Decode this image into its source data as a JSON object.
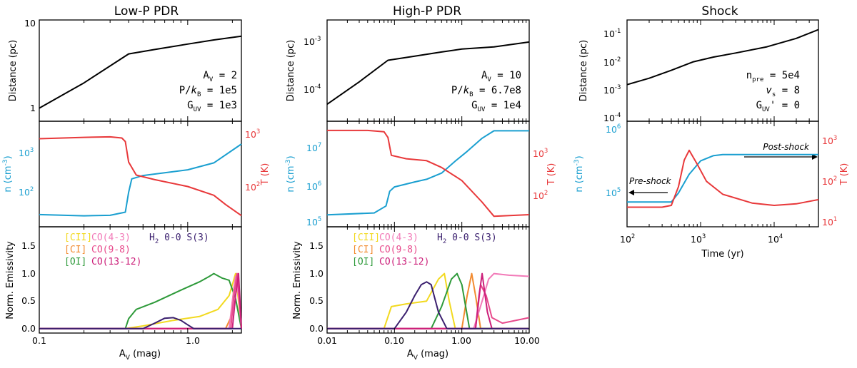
{
  "colors": {
    "density": "#1a9fd0",
    "temperature": "#e8383a",
    "distance": "#000000",
    "CII": "#f2d91f",
    "CI": "#f28b30",
    "OI": "#2e9a3a",
    "CO43": "#f27ab8",
    "CO98": "#e84a8c",
    "CO1312": "#cc1f7a",
    "H2": "#3a1f6e"
  },
  "panels": {
    "lowp": {
      "title": "Low-P PDR",
      "xlabel": "AV (mag)",
      "xlabel_main": "A",
      "xlabel_sub": "V",
      "xlabel_tail": " (mag)",
      "x_ticks": [
        "0.1",
        "1.0"
      ],
      "dist_ylabel": "Distance (pc)",
      "dist_ticks": [
        "1",
        "10"
      ],
      "params": {
        "av": "AV = 2",
        "pk": "P/kB = 1e5",
        "guv": "GUV = 1e3",
        "av_val": "2",
        "pk_val": "1e5",
        "guv_val": "1e3"
      },
      "n_ylabel": "n (cm-3)",
      "T_ylabel": "T (K)",
      "n_ticks": [
        "10",
        "10",
        "10"
      ],
      "n_exps": [
        "2",
        "3"
      ],
      "T_exps": [
        "2",
        "3"
      ],
      "em_ylabel": "Norm. Emissivity",
      "em_ticks": [
        "0.0",
        "0.5",
        "1.0",
        "1.5"
      ],
      "legend": [
        "[CII]",
        "[CI]",
        "[OI]",
        "CO(4-3)",
        "CO(9-8)",
        "CO(13-12)",
        "H2 0-0 S(3)"
      ]
    },
    "highp": {
      "title": "High-P PDR",
      "xlabel": "AV (mag)",
      "x_ticks": [
        "0.01",
        "0.10",
        "1.00",
        "10.00"
      ],
      "dist_ylabel": "Distance (pc)",
      "dist_exps": [
        "-4",
        "-3"
      ],
      "params": {
        "av_val": "10",
        "pk_val": "6.7e8",
        "guv_val": "1e4"
      },
      "n_ylabel": "n (cm-3)",
      "T_ylabel": "T (K)",
      "n_exps": [
        "5",
        "6",
        "7"
      ],
      "T_exps": [
        "2",
        "3"
      ],
      "em_ylabel": "Norm. Emissivity",
      "em_ticks": [
        "0.0",
        "0.5",
        "1.0",
        "1.5"
      ],
      "legend": [
        "[CII]",
        "[CI]",
        "[OI]",
        "CO(4-3)",
        "CO(9-8)",
        "CO(13-12)",
        "H2 0-0 S(3)"
      ]
    },
    "shock": {
      "title": "Shock",
      "xlabel": "Time (yr)",
      "x_exps": [
        "2",
        "3",
        "4"
      ],
      "dist_ylabel": "Distance (pc)",
      "dist_exps": [
        "-4",
        "-3",
        "-2",
        "-1"
      ],
      "params": {
        "npre_val": "5e4",
        "vs_val": "8",
        "guv_val": "0"
      },
      "n_ylabel": "n (cm-3)",
      "T_ylabel": "T (K)",
      "n_exps": [
        "5",
        "6"
      ],
      "T_exps": [
        "1",
        "2",
        "3"
      ],
      "pre_label": "Pre-shock",
      "post_label": "Post-shock"
    }
  },
  "chart_data": [
    {
      "type": "line",
      "title": "Low-P PDR",
      "xlabel": "AV (mag)",
      "xscale": "log",
      "xlim": [
        0.1,
        2.3
      ],
      "subplots": [
        {
          "ylabel": "Distance (pc)",
          "yscale": "log",
          "ylim": [
            0.75,
            10
          ],
          "series": [
            {
              "name": "Distance",
              "x": [
                0.1,
                0.2,
                0.4,
                0.6,
                1.0,
                1.5,
                2.3
              ],
              "y": [
                1.05,
                2.0,
                4.2,
                4.7,
                5.4,
                6.0,
                6.6
              ]
            }
          ]
        },
        {
          "ylabel": "n (cm-3)",
          "yscale": "log",
          "ylim": [
            75,
            3000
          ],
          "series": [
            {
              "name": "n",
              "x": [
                0.1,
                0.2,
                0.3,
                0.38,
                0.4,
                0.42,
                0.5,
                1.0,
                1.5,
                2.3
              ],
              "y": [
                115,
                110,
                112,
                125,
                250,
                400,
                450,
                550,
                700,
                1350
              ]
            }
          ],
          "y2label": "T (K)",
          "y2scale": "log",
          "y2lim": [
            60,
            1600
          ],
          "series2": [
            {
              "name": "T",
              "x": [
                0.1,
                0.2,
                0.3,
                0.36,
                0.38,
                0.4,
                0.45,
                0.6,
                1.0,
                1.5,
                1.8,
                2.3
              ],
              "y": [
                930,
                970,
                985,
                950,
                850,
                450,
                300,
                260,
                210,
                160,
                120,
                85
              ]
            }
          ]
        },
        {
          "ylabel": "Norm. Emissivity",
          "ylim": [
            -0.08,
            1.85
          ],
          "series": [
            {
              "name": "[CII]",
              "x": [
                0.1,
                0.38,
                0.5,
                0.8,
                1.2,
                1.6,
                1.9,
                2.0,
                2.1,
                2.2,
                2.3
              ],
              "y": [
                0,
                0,
                0.05,
                0.15,
                0.22,
                0.35,
                0.6,
                0.8,
                1.0,
                0.5,
                0
              ]
            },
            {
              "name": "[CI]",
              "x": [
                0.1,
                1.8,
                1.95,
                2.05,
                2.15,
                2.25,
                2.3
              ],
              "y": [
                0,
                0,
                0.2,
                0.75,
                1.0,
                0.4,
                0
              ]
            },
            {
              "name": "[OI]",
              "x": [
                0.1,
                0.38,
                0.4,
                0.45,
                0.6,
                0.9,
                1.2,
                1.4,
                1.5,
                1.55,
                1.7,
                1.9,
                2.1,
                2.3
              ],
              "y": [
                0,
                0,
                0.18,
                0.35,
                0.48,
                0.7,
                0.85,
                0.95,
                1.0,
                0.98,
                0.92,
                0.88,
                0.55,
                0
              ]
            },
            {
              "name": "CO(4-3)",
              "x": [
                0.1,
                1.9,
                2.0,
                2.1,
                2.2,
                2.3
              ],
              "y": [
                0,
                0,
                0.5,
                0.95,
                0.6,
                0
              ]
            },
            {
              "name": "CO(9-8)",
              "x": [
                0.1,
                1.95,
                2.05,
                2.15,
                2.25,
                2.3
              ],
              "y": [
                0,
                0,
                0.6,
                1.0,
                0.4,
                0
              ]
            },
            {
              "name": "CO(13-12)",
              "x": [
                0.1,
                2.0,
                2.1,
                2.2,
                2.25,
                2.3
              ],
              "y": [
                0,
                0,
                0.6,
                1.0,
                0.5,
                0
              ]
            },
            {
              "name": "H2 0-0 S(3)",
              "x": [
                0.1,
                0.5,
                0.6,
                0.7,
                0.8,
                0.9,
                1.0,
                1.1,
                2.3
              ],
              "y": [
                0,
                0,
                0.1,
                0.19,
                0.2,
                0.15,
                0.07,
                0,
                0
              ]
            }
          ]
        }
      ],
      "annotations": [
        "AV = 2",
        "P/kB = 1e5",
        "GUV = 1e3"
      ]
    },
    {
      "type": "line",
      "title": "High-P PDR",
      "xlabel": "AV (mag)",
      "xscale": "log",
      "xlim": [
        0.01,
        10
      ],
      "subplots": [
        {
          "ylabel": "Distance (pc)",
          "yscale": "log",
          "ylim": [
            3e-05,
            0.003
          ],
          "series": [
            {
              "name": "Distance",
              "x": [
                0.01,
                0.03,
                0.08,
                0.2,
                0.5,
                1.0,
                3.0,
                10
              ],
              "y": [
                6.5e-05,
                0.00018,
                0.00048,
                0.00058,
                0.0007,
                0.0008,
                0.00088,
                0.0011
              ]
            }
          ]
        },
        {
          "ylabel": "n (cm-3)",
          "yscale": "log",
          "ylim": [
            90000,
            40000000
          ],
          "series": [
            {
              "name": "n",
              "x": [
                0.01,
                0.05,
                0.075,
                0.085,
                0.1,
                0.2,
                0.3,
                0.5,
                0.8,
                1.2,
                2.0,
                3.0,
                10
              ],
              "y": [
                180000,
                200000,
                300000,
                700000,
                900000,
                1200000,
                1400000,
                2000000,
                4000000,
                7000000,
                15000000,
                23000000,
                23000000
              ]
            }
          ],
          "y2label": "T (K)",
          "y2scale": "log",
          "y2lim": [
            50,
            3000
          ],
          "series2": [
            {
              "name": "T",
              "x": [
                0.01,
                0.04,
                0.07,
                0.08,
                0.09,
                0.15,
                0.3,
                0.5,
                1.0,
                2.0,
                3.0,
                10
              ],
              "y": [
                2100,
                2100,
                2000,
                1600,
                800,
                700,
                650,
                500,
                300,
                130,
                75,
                80
              ]
            }
          ]
        },
        {
          "ylabel": "Norm. Emissivity",
          "ylim": [
            -0.08,
            1.85
          ],
          "series": [
            {
              "name": "[CII]",
              "x": [
                0.01,
                0.07,
                0.09,
                0.15,
                0.3,
                0.45,
                0.55,
                0.65,
                0.8,
                10
              ],
              "y": [
                0,
                0,
                0.4,
                0.45,
                0.5,
                0.9,
                1.0,
                0.5,
                0,
                0
              ]
            },
            {
              "name": "[CI]",
              "x": [
                0.01,
                1.0,
                1.2,
                1.4,
                1.6,
                1.9,
                10
              ],
              "y": [
                0,
                0,
                0.6,
                1.0,
                0.6,
                0,
                0
              ]
            },
            {
              "name": "[OI]",
              "x": [
                0.01,
                0.35,
                0.5,
                0.7,
                0.85,
                1.0,
                1.3,
                10
              ],
              "y": [
                0,
                0,
                0.4,
                0.9,
                1.0,
                0.8,
                0,
                0
              ]
            },
            {
              "name": "CO(4-3)",
              "x": [
                0.01,
                1.5,
                2.0,
                2.5,
                3.0,
                5.0,
                10
              ],
              "y": [
                0,
                0,
                0.5,
                0.9,
                1.0,
                0.97,
                0.95
              ]
            },
            {
              "name": "CO(9-8)",
              "x": [
                0.01,
                1.6,
                1.9,
                2.3,
                2.8,
                4.0,
                10
              ],
              "y": [
                0,
                0,
                0.8,
                0.6,
                0.2,
                0.1,
                0.2
              ]
            },
            {
              "name": "CO(13-12)",
              "x": [
                0.01,
                1.6,
                1.8,
                2.0,
                2.4,
                2.8,
                10
              ],
              "y": [
                0,
                0,
                0.6,
                1.0,
                0.3,
                0,
                0
              ]
            },
            {
              "name": "H2 0-0 S(3)",
              "x": [
                0.01,
                0.1,
                0.15,
                0.2,
                0.25,
                0.3,
                0.35,
                0.45,
                0.6,
                10
              ],
              "y": [
                0,
                0,
                0.3,
                0.6,
                0.8,
                0.85,
                0.8,
                0.3,
                0,
                0
              ]
            }
          ]
        }
      ],
      "annotations": [
        "AV = 10",
        "P/kB = 6.7e8",
        "GUV = 1e4"
      ]
    },
    {
      "type": "line",
      "title": "Shock",
      "xlabel": "Time (yr)",
      "xscale": "log",
      "xlim": [
        100,
        40000
      ],
      "subplots": [
        {
          "ylabel": "Distance (pc)",
          "yscale": "log",
          "ylim": [
            5e-05,
            0.15
          ],
          "series": [
            {
              "name": "Distance",
              "x": [
                100,
                200,
                400,
                800,
                1500,
                3000,
                8000,
                20000,
                40000
              ],
              "y": [
                0.0009,
                0.0015,
                0.0028,
                0.0055,
                0.008,
                0.011,
                0.018,
                0.035,
                0.07
              ]
            }
          ]
        },
        {
          "ylabel": "n (cm-3)",
          "yscale": "log",
          "ylim": [
            20000,
            1000000
          ],
          "series": [
            {
              "name": "n",
              "x": [
                100,
                200,
                400,
                500,
                700,
                1000,
                1500,
                2000,
                4000,
                40000
              ],
              "y": [
                50000,
                50000,
                50000,
                70000,
                140000,
                230000,
                280000,
                290000,
                290000,
                290000
              ]
            }
          ],
          "y2label": "T (K)",
          "y2scale": "log",
          "y2lim": [
            7,
            2000
          ],
          "series2": [
            {
              "name": "T",
              "x": [
                100,
                300,
                400,
                500,
                600,
                700,
                900,
                1200,
                2000,
                5000,
                10000,
                20000,
                40000
              ],
              "y": [
                20,
                20,
                22,
                60,
                250,
                420,
                200,
                80,
                40,
                25,
                22,
                24,
                30
              ]
            }
          ]
        }
      ],
      "annotations": [
        "npre = 5e4",
        "vs = 8",
        "GUV' = 0",
        "Pre-shock",
        "Post-shock"
      ]
    }
  ]
}
